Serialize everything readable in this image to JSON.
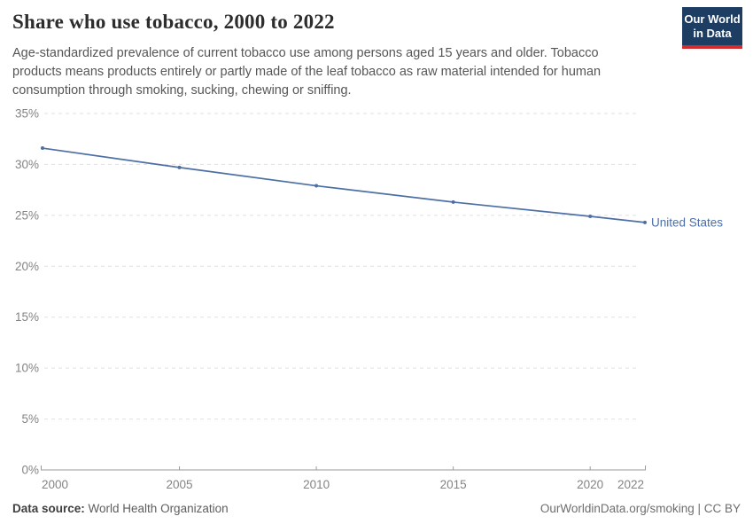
{
  "header": {
    "title": "Share who use tobacco, 2000 to 2022",
    "subtitle_lines": [
      "Age-standardized prevalence of current tobacco use among persons aged 15 years and older. Tobacco",
      "products means products entirely or partly made of the leaf tobacco as raw material intended for human",
      "consumption through smoking, sucking, chewing or sniffing."
    ],
    "logo": {
      "line1": "Our World",
      "line2": "in Data",
      "bg_color": "#1d3d63",
      "bar_color": "#d42b2f"
    }
  },
  "chart_data": {
    "type": "line",
    "title": "Share who use tobacco, 2000 to 2022",
    "xlabel": "",
    "ylabel": "",
    "xlim": [
      2000,
      2022
    ],
    "ylim": [
      0,
      35
    ],
    "yticks": [
      0,
      5,
      10,
      15,
      20,
      25,
      30,
      35
    ],
    "ytick_suffix": "%",
    "xticks": [
      2000,
      2005,
      2010,
      2015,
      2020,
      2022
    ],
    "grid": "horizontal-dashed",
    "legend_position": "end-of-line",
    "series": [
      {
        "name": "United States",
        "color": "#4d6fa5",
        "x": [
          2000,
          2005,
          2010,
          2015,
          2020,
          2022
        ],
        "values": [
          31.6,
          29.7,
          27.9,
          26.3,
          24.9,
          24.3
        ]
      }
    ]
  },
  "footer": {
    "datasource_label": "Data source:",
    "datasource_value": " World Health Organization",
    "credit": "OurWorldinData.org/smoking | CC BY"
  },
  "colors": {
    "accent_line": "#4d6fa5",
    "gridline": "#dfdfdf",
    "axis": "#9a9a9a",
    "tick_text": "#848484"
  }
}
